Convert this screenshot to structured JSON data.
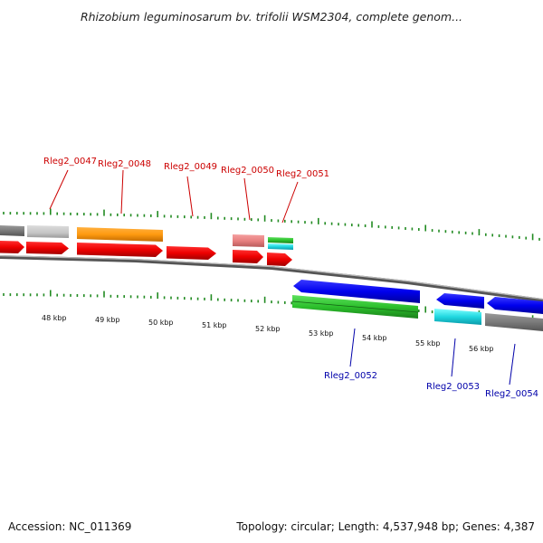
{
  "title": "Rhizobium leguminosarum bv. trifolii WSM2304, complete genom...",
  "footer": {
    "accession": "Accession: NC_011369",
    "topology": "Topology: circular; Length: 4,537,948 bp; Genes: 4,387"
  },
  "colors": {
    "forward_label": "#cc0000",
    "reverse_label": "#0000aa",
    "tick": "#228b22"
  },
  "kbp_labels": [
    "48 kbp",
    "49 kbp",
    "50 kbp",
    "51 kbp",
    "52 kbp",
    "53 kbp",
    "54 kbp",
    "55 kbp",
    "56 kbp"
  ],
  "genes_forward": [
    {
      "label": "Rleg2_0047",
      "color": "#cc0000"
    },
    {
      "label": "Rleg2_0048",
      "color": "#cc0000"
    },
    {
      "label": "Rleg2_0049",
      "color": "#cc0000"
    },
    {
      "label": "Rleg2_0050",
      "color": "#cc0000"
    },
    {
      "label": "Rleg2_0051",
      "color": "#cc0000"
    }
  ],
  "genes_reverse": [
    {
      "label": "Rleg2_0052",
      "color": "#0000aa"
    },
    {
      "label": "Rleg2_0053",
      "color": "#0000aa"
    },
    {
      "label": "Rleg2_0054",
      "color": "#0000aa"
    }
  ]
}
